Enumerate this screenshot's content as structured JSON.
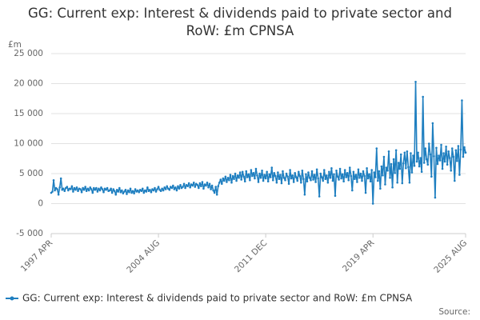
{
  "chart_data": {
    "type": "line",
    "title": "GG: Current exp: Interest & dividends paid to private sector and RoW: £m CPNSA",
    "y_label": "£m",
    "source": "Source:",
    "categories": [
      "1997 APR",
      null,
      null,
      null,
      null,
      null,
      null,
      null,
      null,
      null,
      null,
      null,
      null,
      null,
      null,
      null,
      null,
      null,
      null,
      null,
      null,
      null,
      null,
      null,
      null,
      null,
      null,
      null,
      null,
      null,
      null,
      null,
      null,
      null,
      null,
      null,
      null,
      null,
      null,
      null,
      null,
      null,
      null,
      null,
      null,
      null,
      null,
      null,
      null,
      null,
      null,
      null,
      null,
      null,
      null,
      null,
      null,
      null,
      null,
      null,
      null,
      null,
      null,
      null,
      null,
      null,
      null,
      null,
      null,
      null,
      null,
      null,
      null,
      null,
      null,
      null,
      null,
      null,
      null,
      null,
      null,
      null,
      null,
      null,
      null,
      null,
      null,
      null,
      "2004 AUG",
      null,
      null,
      null,
      null,
      null,
      null,
      null,
      null,
      null,
      null,
      null,
      null,
      null,
      null,
      null,
      null,
      null,
      null,
      null,
      null,
      null,
      null,
      null,
      null,
      null,
      null,
      null,
      null,
      null,
      null,
      null,
      null,
      null,
      null,
      null,
      null,
      null,
      null,
      null,
      null,
      null,
      null,
      null,
      null,
      null,
      null,
      null,
      null,
      null,
      null,
      null,
      null,
      null,
      null,
      null,
      null,
      null,
      null,
      null,
      null,
      null,
      null,
      null,
      null,
      null,
      null,
      null,
      null,
      null,
      null,
      null,
      null,
      null,
      null,
      null,
      null,
      null,
      null,
      null,
      null,
      null,
      null,
      null,
      null,
      null,
      null,
      null,
      "2011 DEC",
      null,
      null,
      null,
      null,
      null,
      null,
      null,
      null,
      null,
      null,
      null,
      null,
      null,
      null,
      null,
      null,
      null,
      null,
      null,
      null,
      null,
      null,
      null,
      null,
      null,
      null,
      null,
      null,
      null,
      null,
      null,
      null,
      null,
      null,
      null,
      null,
      null,
      null,
      null,
      null,
      null,
      null,
      null,
      null,
      null,
      null,
      null,
      null,
      null,
      null,
      null,
      null,
      null,
      null,
      null,
      null,
      null,
      null,
      null,
      null,
      null,
      null,
      null,
      null,
      null,
      null,
      null,
      null,
      null,
      null,
      null,
      null,
      null,
      null,
      null,
      null,
      null,
      null,
      null,
      null,
      null,
      null,
      null,
      null,
      null,
      null,
      null,
      "2019 APR",
      null,
      null,
      null,
      null,
      null,
      null,
      null,
      null,
      null,
      null,
      null,
      null,
      null,
      null,
      null,
      null,
      null,
      null,
      null,
      null,
      null,
      null,
      null,
      null,
      null,
      null,
      null,
      null,
      null,
      null,
      null,
      null,
      null,
      null,
      null,
      null,
      null,
      null,
      null,
      null,
      null,
      null,
      null,
      null,
      null,
      null,
      null,
      null,
      null,
      null,
      null,
      null,
      null,
      null,
      null,
      null,
      null,
      null,
      null,
      null,
      null,
      null,
      null,
      null,
      null,
      null,
      null,
      null,
      null,
      null,
      null,
      null,
      null,
      null,
      null,
      "2025 AUG"
    ],
    "series": [
      {
        "name": "GG: Current exp: Interest & dividends paid to private sector and RoW: £m CPNSA",
        "color": "#1f7fc0",
        "values": [
          1800,
          2000,
          3900,
          2200,
          2600,
          2400,
          1500,
          2700,
          4200,
          2300,
          2500,
          2100,
          2600,
          2800,
          2200,
          2500,
          2400,
          2900,
          2000,
          2600,
          2300,
          2700,
          2100,
          2500,
          2400,
          1900,
          2600,
          2300,
          2800,
          2100,
          2500,
          2200,
          2700,
          2400,
          1800,
          2600,
          2300,
          2600,
          2000,
          2500,
          2200,
          2700,
          2400,
          1900,
          2500,
          2300,
          2600,
          2100,
          2200,
          2500,
          1800,
          2400,
          2100,
          1500,
          2300,
          2000,
          2600,
          1900,
          2200,
          1700,
          2000,
          2300,
          1600,
          2200,
          1900,
          2500,
          1800,
          2100,
          1700,
          2400,
          2000,
          2200,
          1900,
          2300,
          2100,
          2500,
          1800,
          2200,
          2000,
          2700,
          2100,
          2300,
          1900,
          2400,
          2200,
          2600,
          2000,
          2400,
          2800,
          2300,
          2100,
          2500,
          2200,
          2700,
          2400,
          2900,
          2500,
          2300,
          2800,
          2600,
          3000,
          2400,
          2700,
          2200,
          2900,
          2500,
          3100,
          2600,
          2800,
          3300,
          2600,
          3100,
          2900,
          3400,
          2700,
          3200,
          3000,
          3500,
          2800,
          3300,
          3100,
          2600,
          3400,
          2900,
          3600,
          2500,
          3200,
          3000,
          3500,
          2700,
          3300,
          2400,
          3000,
          2200,
          1800,
          2800,
          1500,
          2900,
          3500,
          4000,
          3300,
          4200,
          3800,
          4500,
          3600,
          4300,
          3900,
          4800,
          3500,
          4600,
          4100,
          5000,
          3800,
          4700,
          4300,
          5200,
          4000,
          5300,
          4500,
          3700,
          5400,
          4400,
          4900,
          3900,
          5600,
          4600,
          5100,
          4200,
          5800,
          4700,
          3600,
          5000,
          4300,
          5500,
          3800,
          4800,
          4200,
          5300,
          3700,
          4900,
          4400,
          6000,
          3900,
          5100,
          4600,
          3500,
          5200,
          4100,
          4800,
          3400,
          5400,
          4300,
          3900,
          5000,
          4500,
          3300,
          5600,
          4200,
          4700,
          3600,
          5100,
          4400,
          3800,
          5300,
          4600,
          3500,
          5500,
          4100,
          1500,
          4900,
          3700,
          5200,
          4300,
          3900,
          5400,
          4000,
          4800,
          3600,
          5700,
          4200,
          1200,
          5000,
          4400,
          3800,
          5600,
          4100,
          4700,
          3500,
          5300,
          4300,
          5900,
          3800,
          4900,
          1300,
          5500,
          4500,
          4000,
          5800,
          4200,
          4900,
          3700,
          5600,
          4400,
          5100,
          3900,
          6000,
          4600,
          2200,
          5300,
          4100,
          4800,
          3600,
          5700,
          4300,
          5000,
          3800,
          5400,
          4600,
          1800,
          5900,
          4200,
          4900,
          3700,
          5600,
          0,
          5200,
          4400,
          9200,
          3800,
          5400,
          2500,
          6200,
          4700,
          7800,
          3200,
          6000,
          5500,
          8700,
          4300,
          6600,
          2700,
          7400,
          5100,
          8900,
          3500,
          6800,
          5800,
          8200,
          3400,
          6700,
          8500,
          5900,
          8700,
          6100,
          3500,
          8400,
          5200,
          8000,
          6300,
          20300,
          7000,
          8500,
          6200,
          7600,
          5300,
          17800,
          6800,
          9200,
          7400,
          6500,
          10000,
          8200,
          4500,
          13400,
          7900,
          1000,
          9300,
          6600,
          8000,
          7200,
          9800,
          5800,
          8400,
          7000,
          9500,
          6500,
          8700,
          7600,
          5500,
          9200,
          7800,
          3800,
          8900,
          7100,
          9600,
          4800,
          9000,
          17200,
          7800,
          9400,
          8500
        ]
      }
    ],
    "ylim": [
      -5000,
      25000
    ],
    "yticks": [
      {
        "value": -5000,
        "label": "-5 000"
      },
      0,
      {
        "value": 5000,
        "label": "5 000"
      },
      {
        "value": 10000,
        "label": "10 000"
      },
      {
        "value": 15000,
        "label": "15 000"
      },
      {
        "value": 20000,
        "label": "20 000"
      },
      {
        "value": 25000,
        "label": "25 000"
      }
    ],
    "grid": true
  }
}
